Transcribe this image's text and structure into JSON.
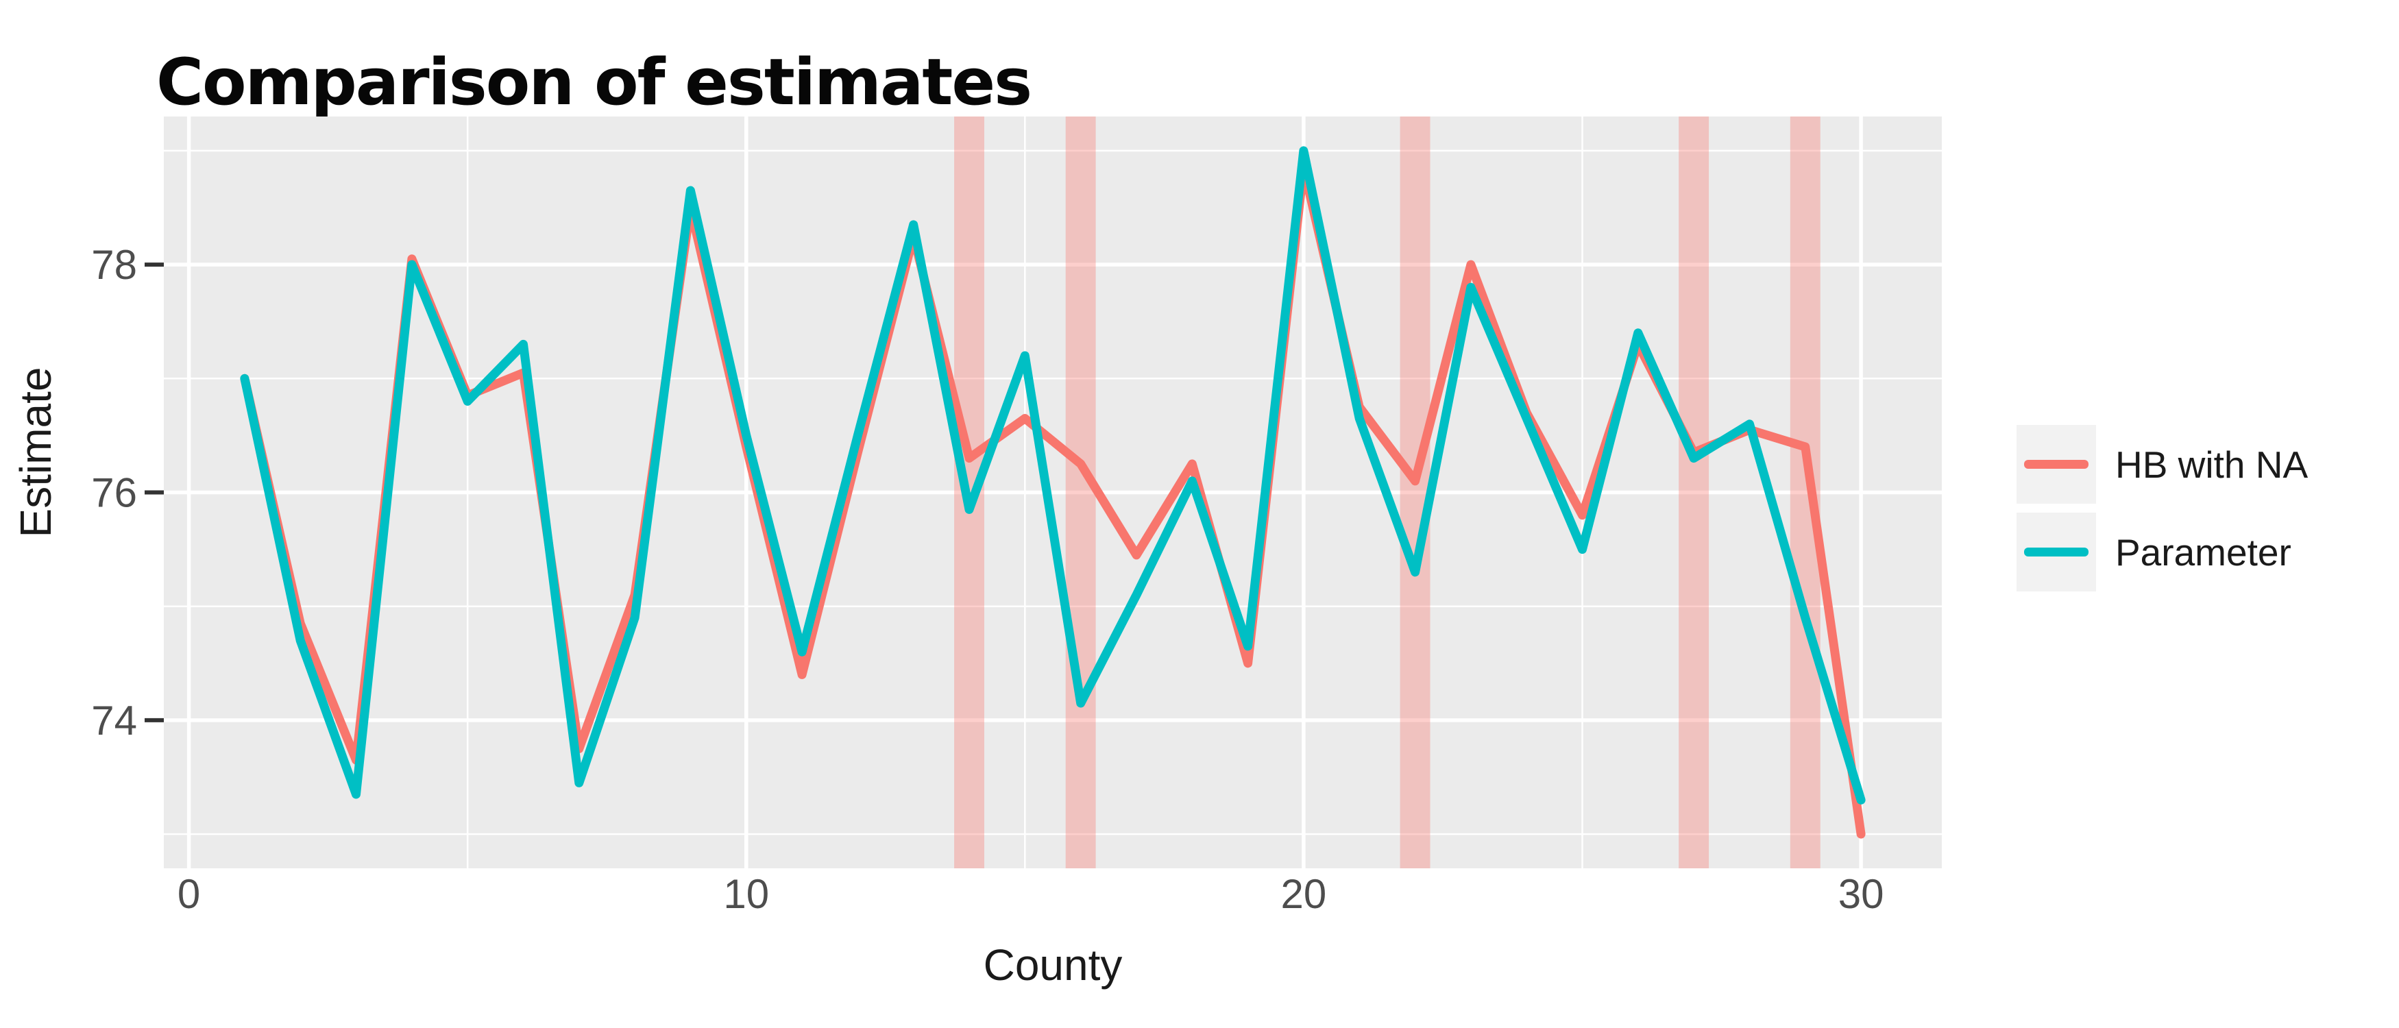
{
  "title": "Comparison of estimates",
  "x_axis": {
    "label": "County"
  },
  "y_axis": {
    "label": "Estimate"
  },
  "legend": {
    "items": [
      {
        "label": "HB with NA",
        "color": "#F8766D"
      },
      {
        "label": "Parameter",
        "color": "#00BFC4"
      }
    ]
  },
  "colors": {
    "hb_line": "#F8766D",
    "parameter_line": "#00BFC4",
    "na_band_fill": "rgba(248,118,109,0.35)",
    "panel_background": "#EBEBEB",
    "gridline": "#FFFFFF",
    "tick_label": "#4D4D4D",
    "tick_mark": "#333333",
    "text": "#1A1A1A"
  },
  "chart_data": {
    "type": "line",
    "title": "Comparison of estimates",
    "xlabel": "County",
    "ylabel": "Estimate",
    "grid": true,
    "legend_position": "right",
    "x_range": [
      -0.45,
      31.45
    ],
    "y_range": [
      72.7,
      79.3
    ],
    "x_ticks": [
      0,
      10,
      20,
      30
    ],
    "x_minor_ticks": [
      5,
      15,
      25
    ],
    "y_ticks": [
      74,
      76,
      78
    ],
    "y_minor_ticks": [
      73,
      75,
      77,
      79
    ],
    "na_band_counties": [
      14,
      16,
      22,
      27,
      29
    ],
    "na_band_width_units": 0.54,
    "x": [
      1,
      2,
      3,
      4,
      5,
      6,
      7,
      8,
      9,
      10,
      11,
      12,
      13,
      14,
      15,
      16,
      17,
      18,
      19,
      20,
      21,
      22,
      23,
      24,
      25,
      26,
      27,
      28,
      29,
      30
    ],
    "series": [
      {
        "name": "HB with NA",
        "color": "#F8766D",
        "values": [
          77.0,
          74.85,
          73.65,
          78.05,
          76.85,
          77.05,
          73.75,
          75.1,
          78.5,
          76.4,
          74.4,
          76.35,
          78.25,
          76.3,
          76.65,
          76.25,
          75.45,
          76.25,
          74.5,
          78.85,
          76.75,
          76.1,
          78.0,
          76.7,
          75.8,
          77.3,
          76.35,
          76.55,
          76.4,
          73.0
        ]
      },
      {
        "name": "Parameter",
        "color": "#00BFC4",
        "values": [
          77.0,
          74.7,
          73.35,
          78.0,
          76.8,
          77.3,
          73.45,
          74.9,
          78.65,
          76.5,
          74.6,
          76.5,
          78.35,
          75.85,
          77.2,
          74.15,
          75.1,
          76.1,
          74.65,
          79.0,
          76.65,
          75.3,
          77.8,
          76.65,
          75.5,
          77.4,
          76.3,
          76.6,
          74.9,
          73.3
        ]
      }
    ]
  }
}
